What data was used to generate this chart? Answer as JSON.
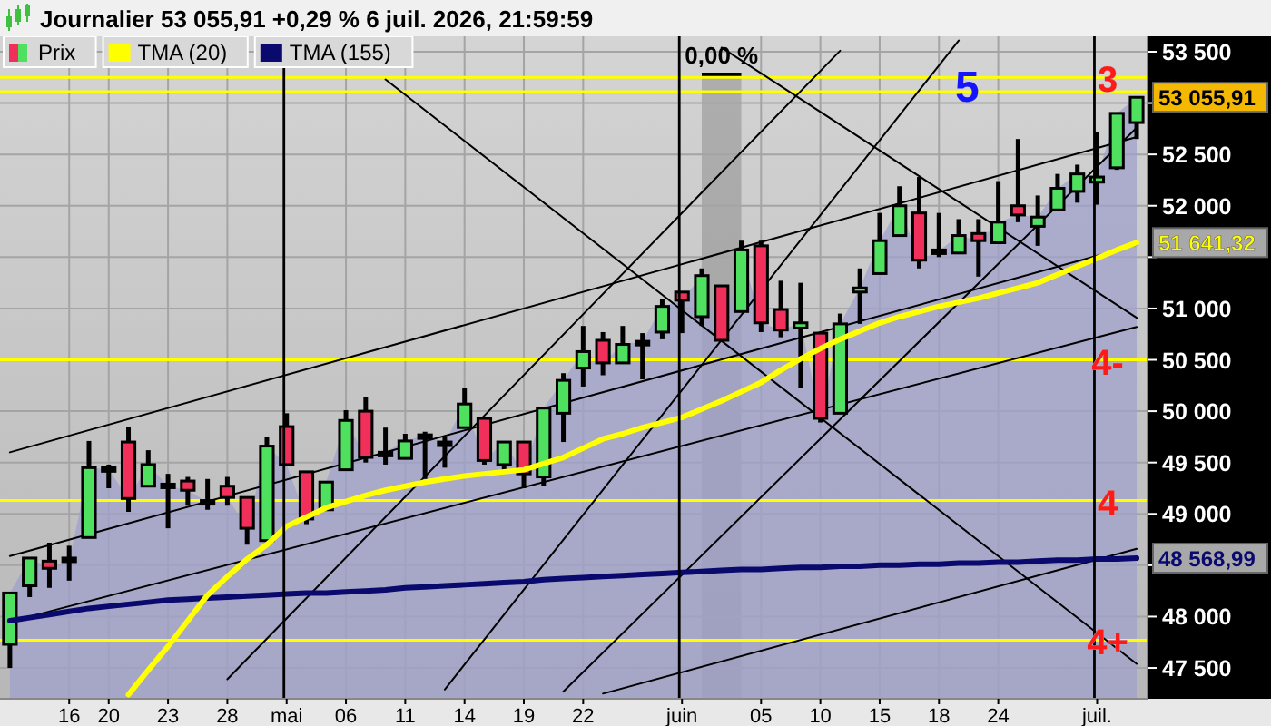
{
  "chart_data": {
    "type": "candlestick",
    "title": "Journalier 53 055,91 +0,29 % 6 juil. 2026, 21:59:59",
    "categories": [
      null,
      null,
      null,
      "16",
      null,
      "20",
      null,
      null,
      "23",
      null,
      null,
      "28",
      null,
      null,
      "mai",
      null,
      null,
      "06",
      null,
      null,
      "11",
      null,
      null,
      "14",
      null,
      null,
      "19",
      null,
      null,
      "22",
      null,
      null,
      null,
      null,
      "juin",
      null,
      null,
      null,
      "05",
      null,
      null,
      "10",
      null,
      null,
      "15",
      null,
      null,
      "18",
      null,
      null,
      "24",
      null,
      null,
      null,
      null,
      "juil.",
      null,
      null
    ],
    "ylim": [
      47200,
      53650
    ],
    "yticks": [
      {
        "value": 47500,
        "label": "47 500"
      },
      {
        "value": 48000,
        "label": "48 000"
      },
      {
        "value": 48500,
        "label": null
      },
      {
        "value": 49000,
        "label": "49 000"
      },
      {
        "value": 49500,
        "label": "49 500"
      },
      {
        "value": 50000,
        "label": "50 000"
      },
      {
        "value": 50500,
        "label": "50 500"
      },
      {
        "value": 51000,
        "label": "51 000"
      },
      {
        "value": 51500,
        "label": null
      },
      {
        "value": 52000,
        "label": "52 000"
      },
      {
        "value": 52500,
        "label": "52 500"
      },
      {
        "value": 53000,
        "label": null
      },
      {
        "value": 53500,
        "label": "53 500"
      }
    ],
    "grid": true,
    "legend": "top left",
    "series": [
      {
        "type": "area",
        "color": "#a0a0cc",
        "values": [
          48230,
          48570,
          48470,
          48540,
          49450,
          49430,
          49150,
          49480,
          49270,
          49230,
          49110,
          49160,
          48860,
          49660,
          49480,
          48950,
          49310,
          49910,
          49550,
          49600,
          49710,
          49770,
          49690,
          50070,
          49520,
          49700,
          49390,
          50030,
          50300,
          50580,
          50470,
          50650,
          50680,
          51020,
          51080,
          51320,
          50690,
          51570,
          50860,
          50790,
          50860,
          49930,
          50850,
          51200,
          51660,
          52000,
          51470,
          51560,
          51710,
          51660,
          51840,
          51910,
          51890,
          52170,
          52310,
          52280,
          52900,
          53055.91
        ]
      },
      {
        "type": "line",
        "color": "#000000",
        "values": [
          49600,
          null,
          null,
          null,
          null,
          null,
          null,
          null,
          null,
          null,
          null,
          null,
          null,
          null,
          null,
          null,
          null,
          null,
          null,
          null,
          null,
          null,
          null,
          null,
          null,
          null,
          null,
          null,
          null,
          null,
          null,
          null,
          null,
          null,
          null,
          null,
          null,
          null,
          null,
          null,
          null,
          null,
          null,
          null,
          null,
          null,
          null,
          null,
          null,
          null,
          null,
          null,
          null,
          null,
          null,
          null,
          null,
          52670
        ]
      },
      {
        "type": "line",
        "color": "#000000",
        "values": [
          48590,
          null,
          null,
          null,
          null,
          null,
          null,
          null,
          null,
          null,
          null,
          null,
          null,
          null,
          null,
          null,
          null,
          null,
          null,
          null,
          null,
          null,
          null,
          null,
          null,
          null,
          null,
          null,
          null,
          null,
          null,
          null,
          null,
          null,
          null,
          null,
          null,
          null,
          null,
          null,
          null,
          null,
          null,
          null,
          null,
          null,
          null,
          null,
          null,
          null,
          null,
          null,
          null,
          null,
          null,
          null,
          null,
          51620
        ]
      },
      {
        "type": "line",
        "color": "#000000",
        "values": [
          47950,
          null,
          null,
          null,
          null,
          null,
          null,
          null,
          null,
          null,
          null,
          null,
          null,
          null,
          null,
          null,
          null,
          null,
          null,
          null,
          null,
          null,
          null,
          null,
          null,
          null,
          null,
          null,
          null,
          null,
          null,
          null,
          null,
          null,
          null,
          null,
          null,
          null,
          null,
          null,
          null,
          null,
          null,
          null,
          null,
          null,
          null,
          null,
          null,
          null,
          null,
          null,
          null,
          null,
          null,
          null,
          null,
          50820
        ]
      },
      {
        "type": "line",
        "color": "#000000",
        "values": [
          null,
          null,
          null,
          null,
          null,
          null,
          null,
          null,
          null,
          null,
          null,
          null,
          null,
          null,
          null,
          null,
          null,
          null,
          null,
          null,
          null,
          null,
          null,
          null,
          null,
          null,
          null,
          null,
          null,
          null,
          47250,
          null,
          null,
          null,
          null,
          null,
          null,
          null,
          null,
          null,
          null,
          null,
          null,
          null,
          null,
          null,
          null,
          null,
          null,
          null,
          null,
          null,
          null,
          null,
          null,
          null,
          null,
          48660
        ]
      },
      {
        "type": "line",
        "color": "#000000",
        "values": [
          null,
          null,
          null,
          null,
          null,
          null,
          null,
          null,
          null,
          null,
          null,
          47390,
          null,
          null,
          null,
          null,
          null,
          null,
          null,
          null,
          null,
          null,
          null,
          null,
          null,
          null,
          null,
          null,
          null,
          null,
          null,
          null,
          null,
          null,
          null,
          null,
          null,
          null,
          null,
          null,
          null,
          null,
          53510,
          null,
          null,
          null,
          null,
          null,
          null,
          null,
          null,
          null,
          null,
          null,
          null,
          null,
          null,
          null
        ]
      },
      {
        "type": "line",
        "color": "#000000",
        "values": [
          null,
          null,
          null,
          null,
          null,
          null,
          null,
          null,
          null,
          null,
          null,
          null,
          null,
          null,
          null,
          null,
          null,
          null,
          null,
          null,
          null,
          null,
          47290,
          null,
          null,
          null,
          null,
          null,
          null,
          null,
          null,
          null,
          null,
          null,
          null,
          null,
          null,
          null,
          null,
          null,
          null,
          null,
          null,
          null,
          null,
          null,
          null,
          null,
          53610,
          null,
          null,
          null,
          null,
          null,
          null,
          null,
          null,
          null
        ]
      },
      {
        "type": "line",
        "color": "#000000",
        "values": [
          null,
          null,
          null,
          null,
          null,
          null,
          null,
          null,
          null,
          null,
          null,
          null,
          null,
          null,
          null,
          null,
          null,
          null,
          null,
          null,
          null,
          null,
          null,
          null,
          null,
          null,
          null,
          null,
          47270,
          null,
          null,
          null,
          null,
          null,
          null,
          null,
          null,
          null,
          null,
          null,
          null,
          null,
          null,
          null,
          null,
          null,
          null,
          null,
          null,
          null,
          null,
          null,
          null,
          null,
          null,
          null,
          null,
          52760
        ]
      },
      {
        "type": "line",
        "color": "#000000",
        "values": [
          null,
          null,
          null,
          null,
          null,
          null,
          null,
          null,
          null,
          null,
          null,
          null,
          null,
          null,
          null,
          null,
          null,
          null,
          null,
          53230,
          null,
          null,
          null,
          null,
          null,
          null,
          null,
          null,
          null,
          null,
          null,
          null,
          null,
          null,
          null,
          null,
          null,
          null,
          null,
          null,
          null,
          null,
          null,
          null,
          null,
          null,
          null,
          null,
          null,
          null,
          null,
          null,
          null,
          null,
          null,
          null,
          null,
          47540
        ]
      },
      {
        "type": "line",
        "color": "#000000",
        "values": [
          null,
          null,
          null,
          null,
          null,
          null,
          null,
          null,
          null,
          null,
          null,
          null,
          null,
          null,
          null,
          null,
          null,
          null,
          null,
          null,
          null,
          null,
          null,
          null,
          null,
          null,
          null,
          null,
          null,
          null,
          null,
          null,
          null,
          null,
          null,
          null,
          53540,
          null,
          null,
          null,
          null,
          null,
          null,
          null,
          null,
          null,
          null,
          null,
          null,
          null,
          null,
          null,
          null,
          null,
          null,
          null,
          null,
          50910
        ]
      },
      {
        "type": "line",
        "name": "TMA (155)",
        "color": "#0a0a6e",
        "values": [
          47960,
          47990,
          48020,
          48050,
          48080,
          48100,
          48120,
          48140,
          48160,
          48170,
          48180,
          48190,
          48200,
          48210,
          48220,
          48230,
          48230,
          48240,
          48250,
          48260,
          48280,
          48290,
          48300,
          48310,
          48320,
          48330,
          48340,
          48360,
          48370,
          48380,
          48390,
          48400,
          48410,
          48420,
          48430,
          48440,
          48450,
          48460,
          48460,
          48470,
          48480,
          48480,
          48490,
          48490,
          48500,
          48500,
          48510,
          48510,
          48520,
          48520,
          48530,
          48530,
          48540,
          48550,
          48550,
          48560,
          48560,
          48568.99
        ],
        "value_labels": [
          null,
          null,
          null,
          null,
          null,
          null,
          null,
          null,
          null,
          null,
          null,
          null,
          null,
          null,
          null,
          null,
          null,
          null,
          null,
          null,
          null,
          null,
          null,
          null,
          null,
          null,
          null,
          null,
          null,
          null,
          null,
          null,
          null,
          null,
          null,
          null,
          null,
          null,
          null,
          null,
          null,
          null,
          null,
          null,
          null,
          null,
          null,
          null,
          null,
          null,
          null,
          null,
          null,
          null,
          null,
          null,
          null,
          "48 568,99"
        ]
      },
      {
        "type": "line",
        "name": "TMA (20)",
        "color": "#ffff00",
        "values": [
          null,
          null,
          null,
          null,
          null,
          null,
          47240,
          47480,
          47710,
          47960,
          48210,
          48390,
          48560,
          48700,
          48880,
          48970,
          49060,
          49120,
          49180,
          49230,
          49270,
          49310,
          49340,
          49370,
          49390,
          49410,
          49430,
          49490,
          49550,
          49640,
          49730,
          49780,
          49840,
          49890,
          49940,
          50020,
          50100,
          50190,
          50280,
          50400,
          50510,
          50610,
          50700,
          50780,
          50860,
          50920,
          50970,
          51020,
          51060,
          51100,
          51150,
          51200,
          51250,
          51330,
          51410,
          51490,
          51570,
          51641.32
        ],
        "value_labels": [
          null,
          null,
          null,
          null,
          null,
          null,
          null,
          null,
          null,
          null,
          null,
          null,
          null,
          null,
          null,
          null,
          null,
          null,
          null,
          null,
          null,
          null,
          null,
          null,
          null,
          null,
          null,
          null,
          null,
          null,
          null,
          null,
          null,
          null,
          null,
          null,
          null,
          null,
          null,
          null,
          null,
          null,
          null,
          null,
          null,
          null,
          null,
          null,
          null,
          null,
          null,
          null,
          null,
          null,
          null,
          null,
          null,
          "51 641,32"
        ]
      },
      {
        "type": "candlestick",
        "name": "Prix",
        "ohlc": [
          [
            47730,
            48230,
            47500,
            48230
          ],
          [
            48300,
            48570,
            48190,
            48570
          ],
          [
            48540,
            48720,
            48280,
            48470
          ],
          [
            48570,
            48690,
            48350,
            48540
          ],
          [
            48770,
            49710,
            48770,
            49450
          ],
          [
            49450,
            49480,
            49250,
            49430
          ],
          [
            49700,
            49850,
            49020,
            49150
          ],
          [
            49270,
            49620,
            49270,
            49480
          ],
          [
            49290,
            49390,
            48860,
            49270
          ],
          [
            49320,
            49360,
            49080,
            49230
          ],
          [
            49130,
            49340,
            49040,
            49110
          ],
          [
            49270,
            49360,
            49080,
            49160
          ],
          [
            49160,
            49160,
            48700,
            48860
          ],
          [
            48740,
            49750,
            48740,
            49660
          ],
          [
            49850,
            49980,
            49480,
            49480
          ],
          [
            49410,
            49410,
            48900,
            48950
          ],
          [
            49040,
            49310,
            49040,
            49310
          ],
          [
            49430,
            50010,
            49430,
            49910
          ],
          [
            50000,
            50140,
            49500,
            49550
          ],
          [
            49590,
            49840,
            49480,
            49600
          ],
          [
            49540,
            49780,
            49540,
            49710
          ],
          [
            49760,
            49800,
            49340,
            49770
          ],
          [
            49700,
            49750,
            49450,
            49690
          ],
          [
            49840,
            50230,
            49840,
            50070
          ],
          [
            49930,
            49930,
            49480,
            49520
          ],
          [
            49480,
            49700,
            49400,
            49700
          ],
          [
            49700,
            49700,
            49250,
            49390
          ],
          [
            49360,
            50030,
            49270,
            50030
          ],
          [
            49980,
            50370,
            49700,
            50300
          ],
          [
            50420,
            50830,
            50240,
            50580
          ],
          [
            50690,
            50770,
            50350,
            50470
          ],
          [
            50470,
            50830,
            50470,
            50650
          ],
          [
            50670,
            50760,
            50310,
            50680
          ],
          [
            50770,
            51090,
            50700,
            51020
          ],
          [
            51160,
            51160,
            50760,
            51080
          ],
          [
            50920,
            51390,
            50830,
            51320
          ],
          [
            51220,
            51220,
            50690,
            50690
          ],
          [
            50970,
            51660,
            50970,
            51570
          ],
          [
            51610,
            51660,
            50770,
            50860
          ],
          [
            50990,
            51270,
            50720,
            50790
          ],
          [
            50810,
            51250,
            50230,
            50860
          ],
          [
            50760,
            50760,
            49890,
            49930
          ],
          [
            49980,
            50950,
            49980,
            50850
          ],
          [
            51160,
            51390,
            50850,
            51200
          ],
          [
            51340,
            51930,
            51340,
            51660
          ],
          [
            51710,
            52190,
            51710,
            52000
          ],
          [
            51930,
            52280,
            51390,
            51470
          ],
          [
            51570,
            51930,
            51500,
            51560
          ],
          [
            51540,
            51870,
            51540,
            51710
          ],
          [
            51730,
            51870,
            51310,
            51660
          ],
          [
            51640,
            52240,
            51640,
            51840
          ],
          [
            52000,
            52650,
            51840,
            51910
          ],
          [
            51800,
            52100,
            51610,
            51890
          ],
          [
            51960,
            52310,
            51960,
            52170
          ],
          [
            52140,
            52400,
            52030,
            52310
          ],
          [
            52230,
            52720,
            52010,
            52280
          ],
          [
            52370,
            52900,
            52350,
            52900
          ],
          [
            52810,
            53055.91,
            52650,
            53055.91
          ]
        ],
        "colors": [
          "#50e060",
          "#50e060",
          "#f0305a",
          "#000000",
          "#50e060",
          "#000000",
          "#f0305a",
          "#50e060",
          "#000000",
          "#f0305a",
          "#000000",
          "#f0305a",
          "#f0305a",
          "#50e060",
          "#f0305a",
          "#f0305a",
          "#50e060",
          "#50e060",
          "#f0305a",
          "#000000",
          "#50e060",
          "#000000",
          "#000000",
          "#50e060",
          "#f0305a",
          "#50e060",
          "#f0305a",
          "#50e060",
          "#50e060",
          "#50e060",
          "#f0305a",
          "#50e060",
          "#000000",
          "#50e060",
          "#f0305a",
          "#50e060",
          "#f0305a",
          "#50e060",
          "#f0305a",
          "#f0305a",
          "#50e060",
          "#f0305a",
          "#50e060",
          "#50e060",
          "#50e060",
          "#50e060",
          "#f0305a",
          "#000000",
          "#50e060",
          "#f0305a",
          "#50e060",
          "#f0305a",
          "#50e060",
          "#50e060",
          "#50e060",
          "#50e060",
          "#50e060",
          "#50e060"
        ],
        "value_labels": [
          null,
          null,
          null,
          null,
          null,
          null,
          null,
          null,
          null,
          null,
          null,
          null,
          null,
          null,
          null,
          null,
          null,
          null,
          null,
          null,
          null,
          null,
          null,
          null,
          null,
          null,
          null,
          null,
          null,
          null,
          null,
          null,
          null,
          null,
          null,
          null,
          null,
          null,
          null,
          null,
          null,
          null,
          null,
          null,
          null,
          null,
          null,
          null,
          null,
          null,
          null,
          null,
          null,
          null,
          null,
          null,
          null,
          "53 055,91"
        ]
      }
    ],
    "ref_lines": [
      {
        "axis": "y",
        "value": 53250,
        "color": "#ffff00"
      },
      {
        "axis": "y",
        "value": 53110,
        "color": "#ffff00"
      },
      {
        "axis": "y",
        "value": 50500,
        "color": "#ffff00"
      },
      {
        "axis": "y",
        "value": 49130,
        "color": "#ffff00"
      },
      {
        "axis": "y",
        "value": 47770,
        "color": "#ffff00"
      },
      {
        "axis": "x",
        "value": "mai",
        "color": "#000000"
      },
      {
        "axis": "x",
        "value": "juin",
        "color": "#000000"
      },
      {
        "axis": "x",
        "value": "juil.",
        "color": "#000000"
      }
    ],
    "annotations": [
      "5",
      "0,00 %",
      {
        "text": "3",
        "y": 53250
      },
      {
        "text": "4-",
        "y": 50500
      },
      {
        "text": "4",
        "y": 49130
      },
      {
        "text": "4+",
        "y": 47770
      }
    ]
  }
}
